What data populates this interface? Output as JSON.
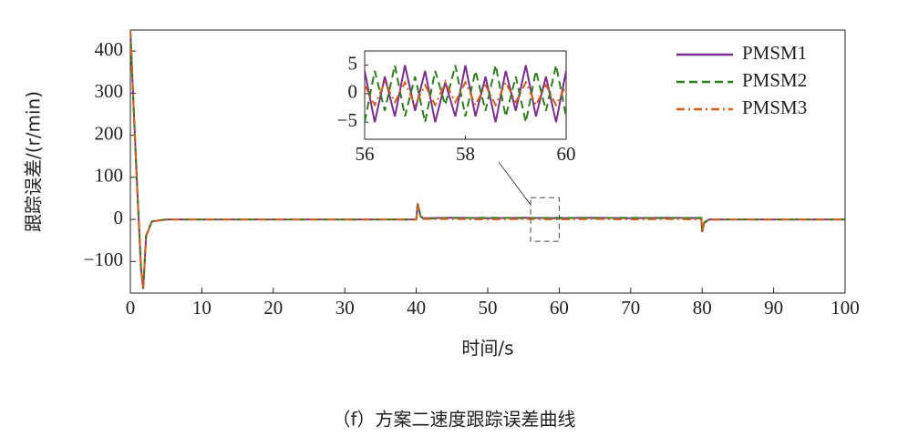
{
  "caption": "（f）方案二速度跟踪误差曲线",
  "chart_data": [
    {
      "type": "line",
      "xlabel": "时间/s",
      "ylabel": "跟踪误差/(r/min)",
      "xlim": [
        0,
        100
      ],
      "ylim": [
        -175,
        450
      ],
      "xticks": [
        0,
        10,
        20,
        30,
        40,
        50,
        60,
        70,
        80,
        90,
        100
      ],
      "yticks": [
        {
          "value": -100,
          "label": "−100"
        },
        0,
        100,
        200,
        300,
        400
      ],
      "legend": "upper right",
      "x": [
        0,
        0.5,
        1,
        1.5,
        1.8,
        2.2,
        3,
        5,
        10,
        20,
        30,
        40,
        40.2,
        40.6,
        41,
        45,
        50,
        55,
        60,
        65,
        70,
        75,
        79.9,
        80,
        80.3,
        81,
        85,
        90,
        95,
        100
      ],
      "series": [
        {
          "name": "PMSM1",
          "color": "#7b2d8e",
          "line_style": "solid",
          "values": [
            450,
            250,
            60,
            -120,
            -165,
            -40,
            -5,
            0,
            0,
            0,
            0,
            0,
            38,
            8,
            3,
            4,
            3,
            4,
            3,
            4,
            3,
            4,
            3,
            -30,
            -8,
            0,
            0,
            0,
            0,
            0
          ]
        },
        {
          "name": "PMSM2",
          "color": "#2e7d1e",
          "line_style": "dashed",
          "values": [
            448,
            248,
            58,
            -118,
            -163,
            -38,
            -5,
            0,
            0,
            0,
            0,
            0,
            36,
            7,
            2,
            3,
            4,
            3,
            4,
            3,
            4,
            3,
            4,
            -28,
            -7,
            0,
            0,
            0,
            0,
            0
          ]
        },
        {
          "name": "PMSM3",
          "color": "#d2601a",
          "line_style": "dashdot",
          "values": [
            449,
            249,
            59,
            -119,
            -164,
            -39,
            -5,
            0,
            0,
            0,
            0,
            0,
            37,
            6,
            1,
            1,
            0,
            1,
            0,
            1,
            0,
            1,
            0,
            -32,
            -6,
            0,
            0,
            0,
            0,
            0
          ]
        }
      ]
    },
    {
      "type": "line",
      "xlim": [
        56,
        60
      ],
      "ylim": [
        -8,
        7.5
      ],
      "xticks": [
        56,
        58,
        60
      ],
      "yticks": [
        {
          "value": -5,
          "label": "−5"
        },
        0,
        5
      ],
      "x": [
        56,
        56.2,
        56.4,
        56.6,
        56.8,
        57,
        57.2,
        57.4,
        57.6,
        57.8,
        58,
        58.2,
        58.4,
        58.6,
        58.8,
        59,
        59.2,
        59.4,
        59.6,
        59.8,
        60
      ],
      "series": [
        {
          "name": "PMSM1",
          "color": "#7b2d8e",
          "line_style": "solid",
          "values": [
            4,
            -5,
            3,
            -4,
            5,
            -3,
            4,
            -5,
            2,
            -4,
            5,
            -4,
            3,
            -5,
            4,
            -3,
            5,
            -4,
            3,
            -5,
            4
          ]
        },
        {
          "name": "PMSM2",
          "color": "#2e7d1e",
          "line_style": "dashed",
          "values": [
            -5,
            4,
            -3,
            5,
            -4,
            3,
            -5,
            4,
            -2,
            5,
            -4,
            4,
            -3,
            5,
            -4,
            3,
            -5,
            4,
            -3,
            5,
            -4
          ]
        },
        {
          "name": "PMSM3",
          "color": "#d2601a",
          "line_style": "dashdot",
          "values": [
            1.5,
            -2,
            2,
            -1.5,
            2,
            -2,
            1.5,
            -2,
            2,
            -1.5,
            2,
            -2,
            1.5,
            -2,
            2,
            -1.5,
            2,
            -2,
            1.5,
            -2,
            1.5
          ]
        }
      ]
    }
  ]
}
